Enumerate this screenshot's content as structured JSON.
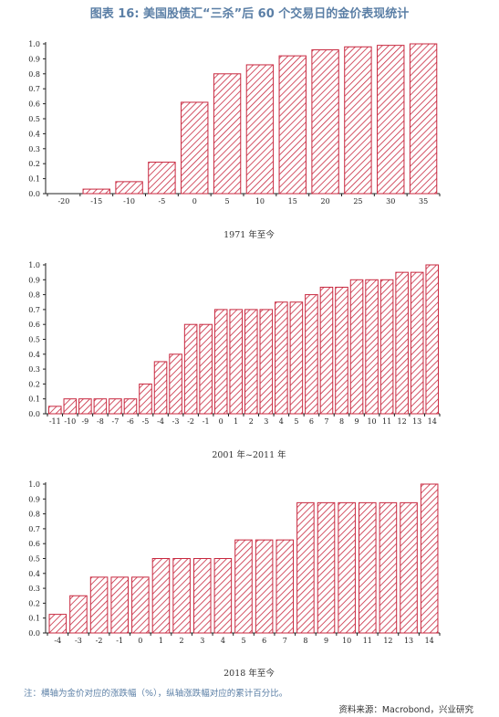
{
  "title": "图表 16: 美国股债汇“三杀”后 60 个交易日的金价表现统计",
  "note": "注：横轴为金价对应的涨跌幅（%），纵轴涨跌幅对应的累计百分比。",
  "source": "资料来源：Macrobond，兴业研究",
  "colors": {
    "bar": "#c8283f",
    "title": "#5b7fa6"
  },
  "chart_data": [
    {
      "type": "bar",
      "title": "1971 年至今",
      "categories": [
        "-20",
        "-15",
        "-10",
        "-5",
        "0",
        "5",
        "10",
        "15",
        "20",
        "25",
        "30",
        "35"
      ],
      "values": [
        0.0,
        0.03,
        0.08,
        0.21,
        0.61,
        0.8,
        0.86,
        0.92,
        0.96,
        0.98,
        0.99,
        1.0
      ],
      "ylim": [
        0,
        1.0
      ],
      "yticks": [
        "0.0",
        "0.1",
        "0.2",
        "0.3",
        "0.4",
        "0.5",
        "0.6",
        "0.7",
        "0.8",
        "0.9",
        "1.0"
      ]
    },
    {
      "type": "bar",
      "title": "2001 年~2011 年",
      "categories": [
        "-11",
        "-10",
        "-9",
        "-8",
        "-7",
        "-6",
        "-5",
        "-4",
        "-3",
        "-2",
        "-1",
        "0",
        "1",
        "2",
        "3",
        "4",
        "5",
        "6",
        "7",
        "8",
        "9",
        "10",
        "11",
        "12",
        "13",
        "14"
      ],
      "values": [
        0.05,
        0.1,
        0.1,
        0.1,
        0.1,
        0.1,
        0.2,
        0.35,
        0.4,
        0.6,
        0.6,
        0.7,
        0.7,
        0.7,
        0.7,
        0.75,
        0.75,
        0.8,
        0.85,
        0.85,
        0.9,
        0.9,
        0.9,
        0.95,
        0.95,
        1.0
      ],
      "ylim": [
        0,
        1.0
      ],
      "yticks": [
        "0.0",
        "0.1",
        "0.2",
        "0.3",
        "0.4",
        "0.5",
        "0.6",
        "0.7",
        "0.8",
        "0.9",
        "1.0"
      ]
    },
    {
      "type": "bar",
      "title": "2018 年至今",
      "categories": [
        "-4",
        "-3",
        "-2",
        "-1",
        "0",
        "1",
        "2",
        "3",
        "4",
        "5",
        "6",
        "7",
        "8",
        "9",
        "10",
        "11",
        "12",
        "13",
        "14"
      ],
      "values": [
        0.125,
        0.25,
        0.375,
        0.375,
        0.375,
        0.5,
        0.5,
        0.5,
        0.5,
        0.625,
        0.625,
        0.625,
        0.875,
        0.875,
        0.875,
        0.875,
        0.875,
        0.875,
        1.0
      ],
      "ylim": [
        0,
        1.0
      ],
      "yticks": [
        "0.0",
        "0.1",
        "0.2",
        "0.3",
        "0.4",
        "0.5",
        "0.6",
        "0.7",
        "0.8",
        "0.9",
        "1.0"
      ]
    }
  ]
}
